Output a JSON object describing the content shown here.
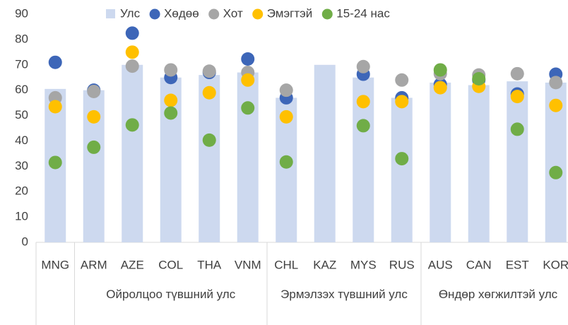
{
  "chart_data": {
    "type": "bar-dot",
    "groups": [
      {
        "label": null,
        "categories": [
          "MNG"
        ]
      },
      {
        "label": "Ойролцоо түвшний улс",
        "categories": [
          "ARM",
          "AZE",
          "COL",
          "THA",
          "VNM"
        ]
      },
      {
        "label": "Эрмэлзэх түвшний улс",
        "categories": [
          "CHL",
          "KAZ",
          "MYS",
          "RUS"
        ]
      },
      {
        "label": "Өндөр хөгжилтэй улс",
        "categories": [
          "AUS",
          "CAN",
          "EST",
          "KOR"
        ]
      }
    ],
    "series": [
      {
        "name": "Улс",
        "kind": "bar",
        "color": "#cdd9ef",
        "values": [
          60.5,
          60,
          70,
          65,
          66,
          67,
          57,
          70,
          65,
          57,
          63,
          62,
          63.5,
          63
        ]
      },
      {
        "name": "Хөдөө",
        "kind": "dot",
        "color": "#3d66b8",
        "values": [
          71,
          60,
          82.5,
          65,
          67,
          72.3,
          57,
          null,
          66.3,
          57,
          62.3,
          64,
          58.5,
          66.3
        ]
      },
      {
        "name": "Хот",
        "kind": "dot",
        "color": "#a6a6a6",
        "values": [
          57,
          59.5,
          69.5,
          68,
          67.5,
          67,
          60,
          null,
          69.3,
          64,
          66.5,
          66,
          66.5,
          63
        ]
      },
      {
        "name": "Эмэгтэй",
        "kind": "dot",
        "color": "#ffc000",
        "values": [
          53.5,
          49.5,
          75,
          56,
          59,
          64,
          49.5,
          null,
          55.5,
          55.5,
          61,
          61.5,
          57.5,
          54
        ]
      },
      {
        "name": "15-24 нас",
        "kind": "dot",
        "color": "#70ad47",
        "values": [
          31.5,
          37.5,
          46.3,
          51,
          40.3,
          53,
          31.7,
          null,
          46,
          33,
          68,
          64.5,
          44.6,
          27.5
        ]
      }
    ],
    "ylim": [
      0,
      90
    ],
    "yticks": [
      0,
      10,
      20,
      30,
      40,
      50,
      60,
      70,
      80,
      90
    ],
    "grid": false
  }
}
